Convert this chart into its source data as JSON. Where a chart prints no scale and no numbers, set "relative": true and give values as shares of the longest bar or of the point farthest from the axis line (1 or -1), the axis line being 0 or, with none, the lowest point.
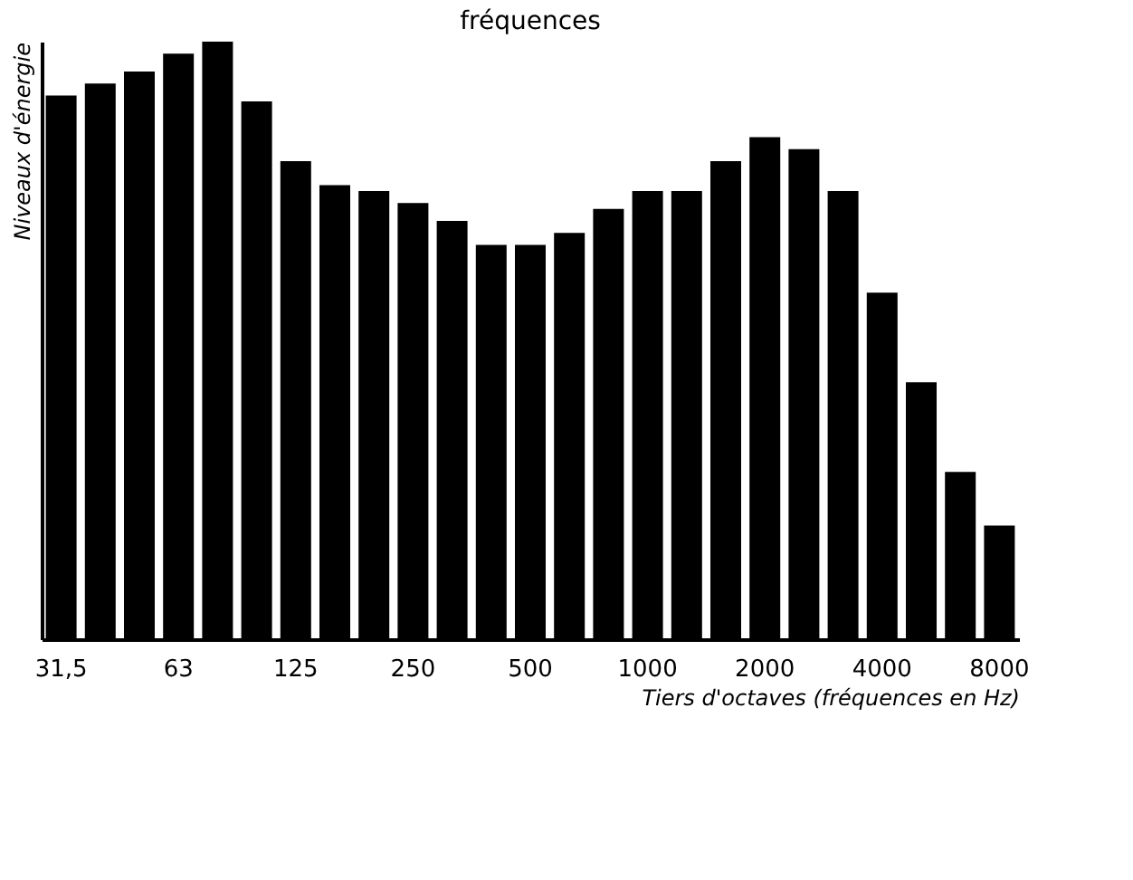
{
  "chart_data": {
    "type": "bar",
    "title": "fréquences",
    "xlabel": "Tiers d'octaves (fréquences en Hz)",
    "ylabel": "Niveaux d'énergie",
    "categories": [
      "31,5",
      null,
      null,
      "63",
      null,
      null,
      "125",
      null,
      null,
      "250",
      null,
      null,
      "500",
      null,
      null,
      "1000",
      null,
      null,
      "2000",
      null,
      null,
      "4000",
      null,
      null,
      "8000"
    ],
    "values": [
      0.91,
      0.93,
      0.95,
      0.98,
      1,
      0.9,
      0.8,
      0.76,
      0.75,
      0.73,
      0.7,
      0.66,
      0.66,
      0.68,
      0.72,
      0.75,
      0.75,
      0.8,
      0.84,
      0.82,
      0.75,
      0.58,
      0.43,
      0.28,
      0.19
    ],
    "color": "#000000",
    "relative": true,
    "grid": false
  }
}
